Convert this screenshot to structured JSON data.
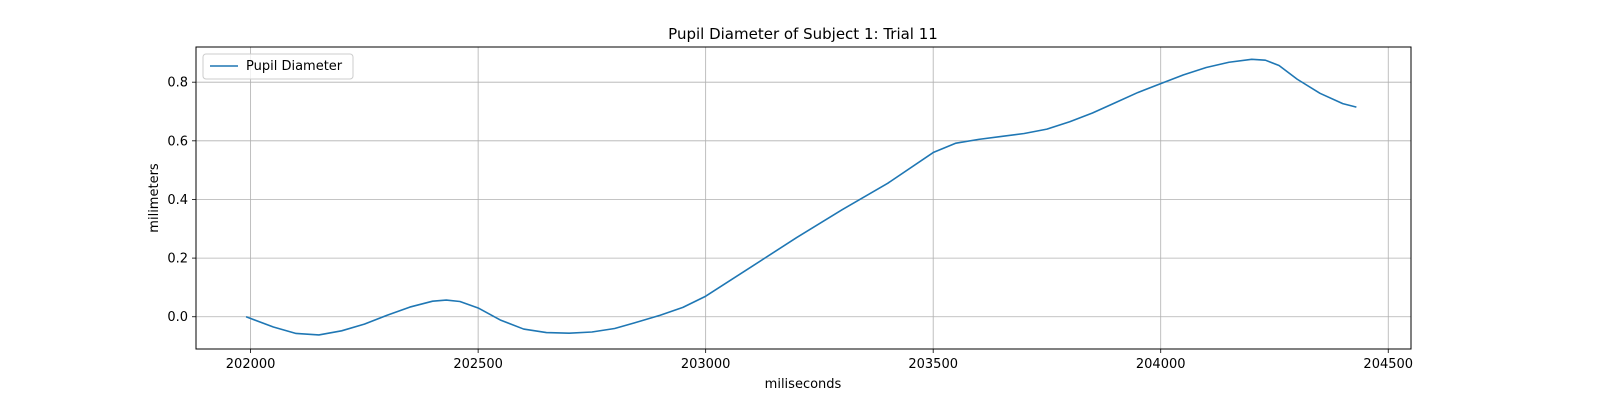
{
  "chart_data": {
    "type": "line",
    "title": "Pupil Diameter of Subject 1: Trial 11",
    "xlabel": "miliseconds",
    "ylabel": "milimeters",
    "xlim": [
      201880,
      204550
    ],
    "ylim": [
      -0.11,
      0.92
    ],
    "xticks": [
      202000,
      202500,
      203000,
      203500,
      204000,
      204500
    ],
    "yticks": [
      0.0,
      0.2,
      0.4,
      0.6,
      0.8
    ],
    "ytick_labels": [
      "0.0",
      "0.2",
      "0.4",
      "0.6",
      "0.8"
    ],
    "grid": true,
    "legend_position": "top-left",
    "colors": {
      "line": "#1f77b4",
      "grid": "#b0b0b0"
    },
    "series": [
      {
        "name": "Pupil Diameter",
        "x": [
          201990,
          202050,
          202100,
          202150,
          202200,
          202250,
          202300,
          202350,
          202400,
          202430,
          202460,
          202500,
          202550,
          202600,
          202650,
          202700,
          202750,
          202800,
          202850,
          202900,
          202950,
          203000,
          203100,
          203200,
          203300,
          203400,
          203500,
          203550,
          203600,
          203650,
          203700,
          203750,
          203800,
          203850,
          203900,
          203950,
          204000,
          204050,
          204100,
          204150,
          204200,
          204230,
          204260,
          204300,
          204350,
          204400,
          204430
        ],
        "y": [
          0.0,
          -0.035,
          -0.057,
          -0.062,
          -0.048,
          -0.025,
          0.005,
          0.033,
          0.053,
          0.057,
          0.052,
          0.03,
          -0.012,
          -0.042,
          -0.054,
          -0.056,
          -0.052,
          -0.04,
          -0.018,
          0.005,
          0.032,
          0.07,
          0.17,
          0.27,
          0.365,
          0.455,
          0.56,
          0.592,
          0.605,
          0.615,
          0.625,
          0.64,
          0.665,
          0.695,
          0.73,
          0.765,
          0.795,
          0.825,
          0.85,
          0.868,
          0.878,
          0.875,
          0.857,
          0.81,
          0.762,
          0.727,
          0.715
        ]
      }
    ]
  }
}
